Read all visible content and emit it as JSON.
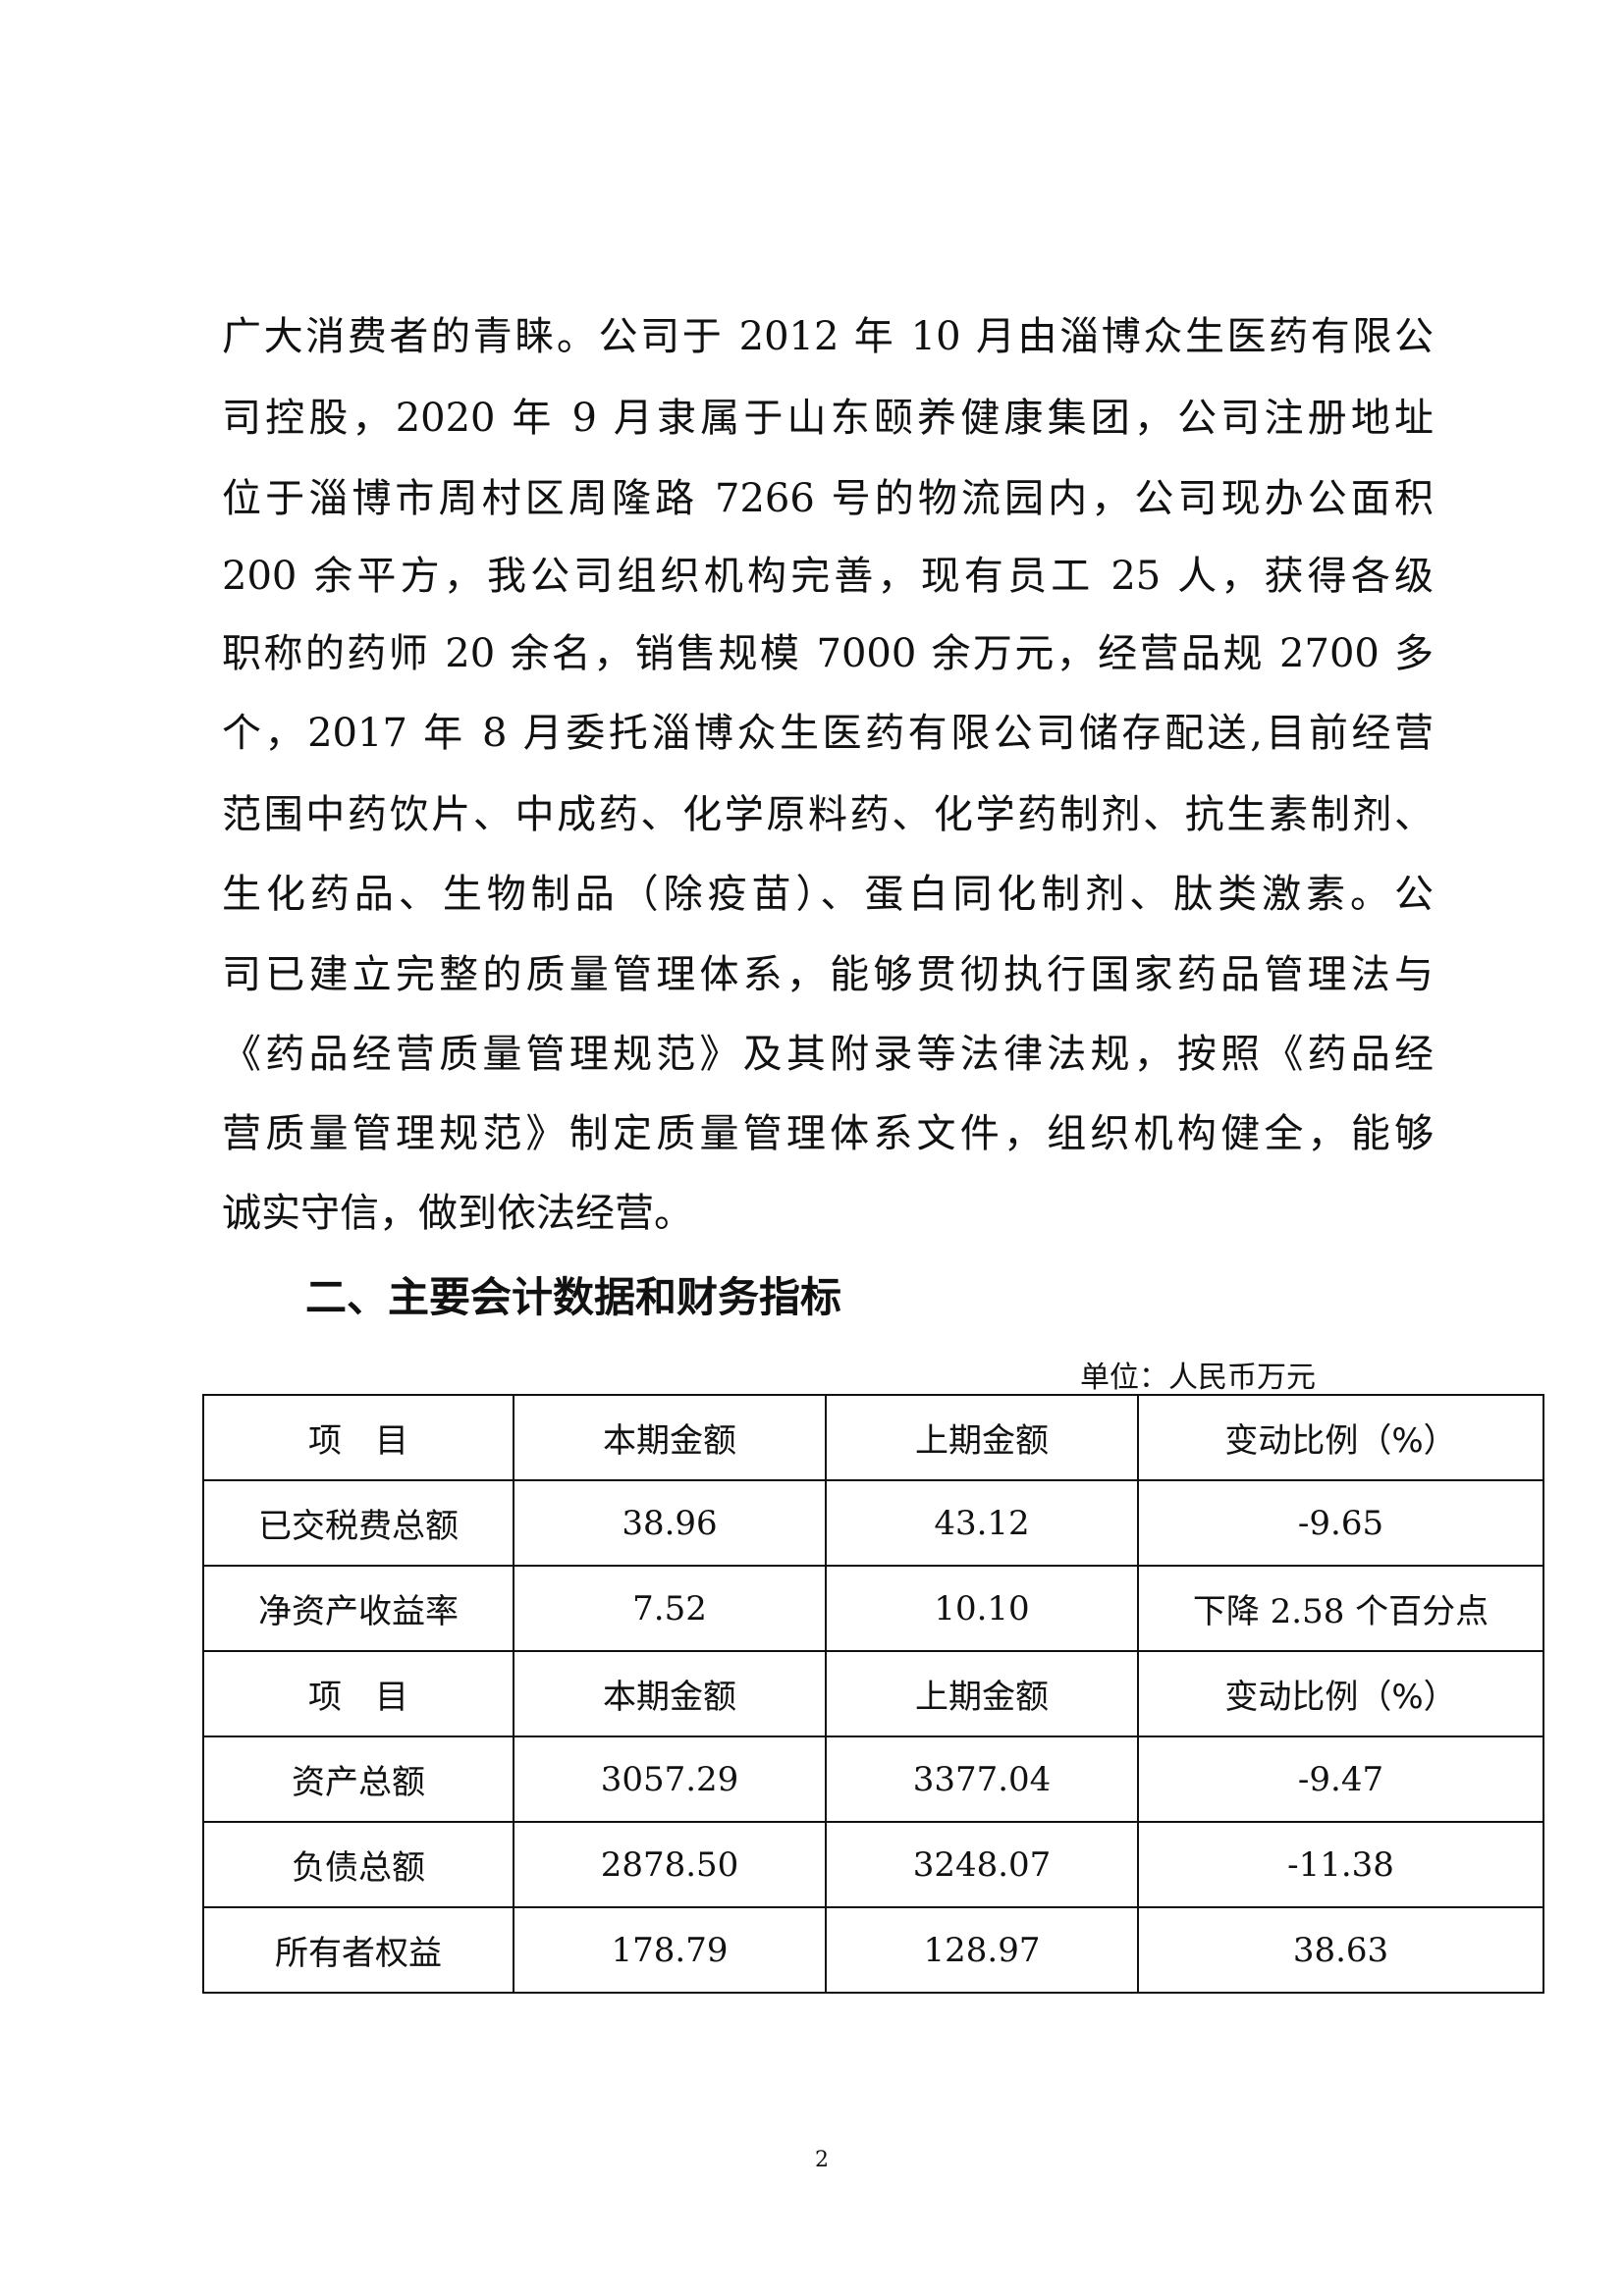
{
  "body_lines": [
    "广大消费者的青睐。公司于 2012 年 10 月由淄博众生医药有限公",
    "司控股，2020 年 9 月隶属于山东颐养健康集团，公司注册地址",
    "位于淄博市周村区周隆路 7266 号的物流园内，公司现办公面积",
    "200 余平方，我公司组织机构完善，现有员工 25 人，获得各级",
    "职称的药师 20 余名，销售规模 7000 余万元，经营品规 2700 多",
    "个，2017 年 8 月委托淄博众生医药有限公司储存配送,目前经营",
    "范围中药饮片、中成药、化学原料药、化学药制剂、抗生素制剂、",
    "生化药品、生物制品（除疫苗）、蛋白同化制剂、肽类激素。公",
    "司已建立完整的质量管理体系，能够贯彻执行国家药品管理法与",
    "《药品经营质量管理规范》及其附录等法律法规，按照《药品经",
    "营质量管理规范》制定质量管理体系文件，组织机构健全，能够",
    "诚实守信，做到依法经营。"
  ],
  "section_heading": "二、主要会计数据和财务指标",
  "unit_label": "单位：人民币万元",
  "table": {
    "header": [
      "项　目",
      "本期金额",
      "上期金额",
      "变动比例（%）"
    ],
    "rows_a": [
      [
        "已交税费总额",
        "38.96",
        "43.12",
        "-9.65"
      ],
      [
        "净资产收益率",
        "7.52",
        "10.10",
        "下降 2.58 个百分点"
      ]
    ],
    "rows_b": [
      [
        "资产总额",
        "3057.29",
        "3377.04",
        "-9.47"
      ],
      [
        "负债总额",
        "2878.50",
        "3248.07",
        "-11.38"
      ],
      [
        "所有者权益",
        "178.79",
        "128.97",
        "38.63"
      ]
    ]
  },
  "page_number": "2"
}
